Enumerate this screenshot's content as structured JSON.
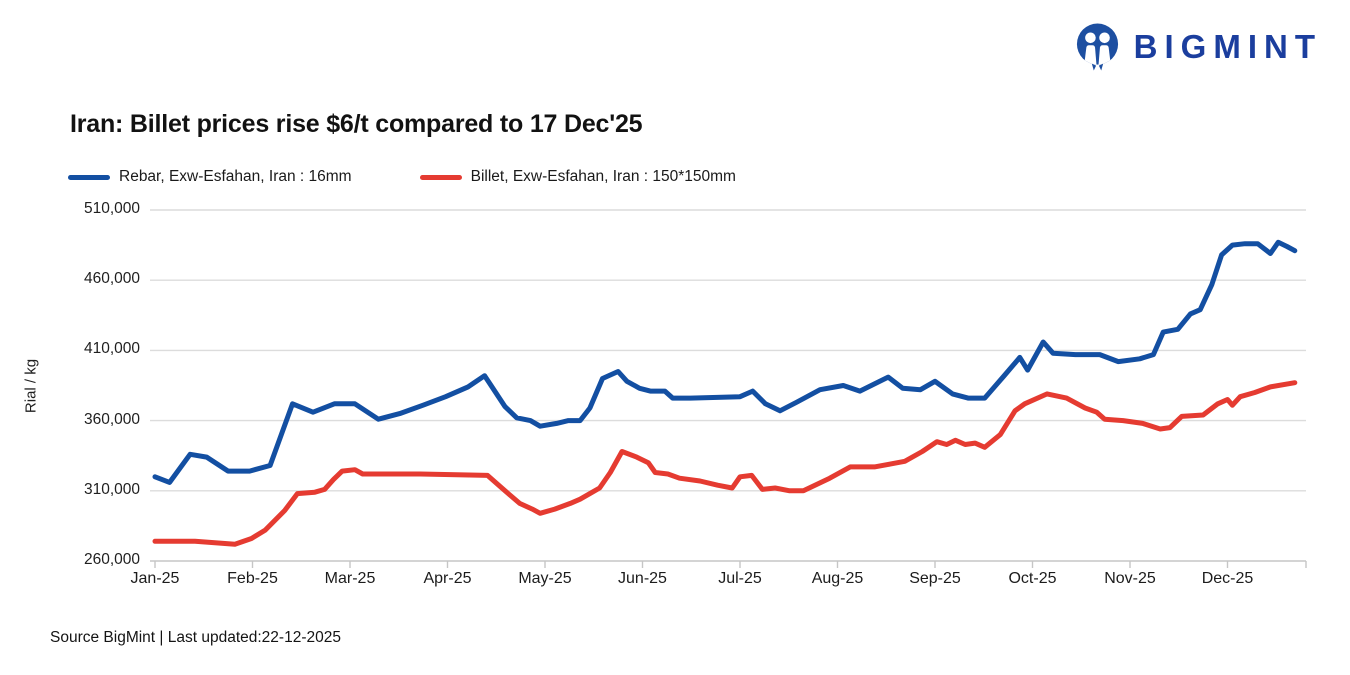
{
  "brand": {
    "name": "BIGMINT",
    "logo_icon": "bigmint-two-people-circle",
    "icon_color": "#1d4fa1",
    "text_color": "#1b3e9e"
  },
  "header": {
    "title": "Iran: Billet prices rise $6/t compared to 17 Dec'25"
  },
  "footer": {
    "text": "Source BigMint | Last updated:22-12-2025"
  },
  "chart_data": {
    "type": "line",
    "title": "Iran: Billet prices rise $6/t compared to 17 Dec'25",
    "ylabel": "Rial / kg",
    "ylim": [
      260000,
      510000
    ],
    "grid": "horizontal",
    "legend_position": "top-left",
    "line_width": 5,
    "x_unit": "months since Jan-2025 (0 = early Jan-25, fractional months)",
    "yticks": [
      {
        "value": 510000,
        "label": "510,000"
      },
      {
        "value": 460000,
        "label": "460,000"
      },
      {
        "value": 410000,
        "label": "410,000"
      },
      {
        "value": 360000,
        "label": "360,000"
      },
      {
        "value": 310000,
        "label": "310,000"
      },
      {
        "value": 260000,
        "label": "260,000"
      }
    ],
    "x_tick_labels": [
      "Jan-25",
      "Feb-25",
      "Mar-25",
      "Apr-25",
      "May-25",
      "Jun-25",
      "Jul-25",
      "Aug-25",
      "Sep-25",
      "Oct-25",
      "Nov-25",
      "Dec-25"
    ],
    "series": [
      {
        "name": "Rebar, Exw-Esfahan, Iran : 16mm",
        "color": "#134fa2",
        "points": [
          [
            0,
            320000
          ],
          [
            0.15,
            316000
          ],
          [
            0.36,
            336000
          ],
          [
            0.53,
            334000
          ],
          [
            0.75,
            324000
          ],
          [
            0.97,
            324000
          ],
          [
            1.18,
            328000
          ],
          [
            1.41,
            372000
          ],
          [
            1.62,
            366000
          ],
          [
            1.84,
            372000
          ],
          [
            2.05,
            372000
          ],
          [
            2.29,
            361000
          ],
          [
            2.51,
            365000
          ],
          [
            2.75,
            371000
          ],
          [
            2.98,
            377000
          ],
          [
            3.21,
            384000
          ],
          [
            3.38,
            392000
          ],
          [
            3.59,
            370000
          ],
          [
            3.71,
            362000
          ],
          [
            3.85,
            360000
          ],
          [
            3.95,
            356000
          ],
          [
            4.12,
            358000
          ],
          [
            4.24,
            360000
          ],
          [
            4.36,
            360000
          ],
          [
            4.46,
            369000
          ],
          [
            4.59,
            390000
          ],
          [
            4.75,
            395000
          ],
          [
            4.84,
            388000
          ],
          [
            4.97,
            383000
          ],
          [
            5.08,
            381000
          ],
          [
            5.23,
            381000
          ],
          [
            5.31,
            376000
          ],
          [
            5.49,
            376000
          ],
          [
            6,
            377000
          ],
          [
            6.13,
            381000
          ],
          [
            6.26,
            372000
          ],
          [
            6.41,
            367000
          ],
          [
            6.58,
            373000
          ],
          [
            6.82,
            382000
          ],
          [
            7.06,
            385000
          ],
          [
            7.23,
            381000
          ],
          [
            7.52,
            391000
          ],
          [
            7.67,
            383000
          ],
          [
            7.85,
            382000
          ],
          [
            8,
            388000
          ],
          [
            8.18,
            379000
          ],
          [
            8.34,
            376000
          ],
          [
            8.51,
            376000
          ],
          [
            8.71,
            392000
          ],
          [
            8.87,
            405000
          ],
          [
            8.95,
            396000
          ],
          [
            9.11,
            416000
          ],
          [
            9.21,
            408000
          ],
          [
            9.44,
            407000
          ],
          [
            9.69,
            407000
          ],
          [
            9.88,
            402000
          ],
          [
            10.1,
            404000
          ],
          [
            10.24,
            407000
          ],
          [
            10.34,
            423000
          ],
          [
            10.49,
            425000
          ],
          [
            10.62,
            436000
          ],
          [
            10.72,
            439000
          ],
          [
            10.84,
            457000
          ],
          [
            10.94,
            478000
          ],
          [
            11.05,
            485000
          ],
          [
            11.18,
            486000
          ],
          [
            11.31,
            486000
          ],
          [
            11.44,
            479000
          ],
          [
            11.52,
            487000
          ],
          [
            11.61,
            484000
          ],
          [
            11.69,
            481000
          ]
        ]
      },
      {
        "name": "Billet, Exw-Esfahan, Iran : 150*150mm",
        "color": "#e53b31",
        "points": [
          [
            0,
            274000
          ],
          [
            0.41,
            274000
          ],
          [
            0.82,
            272000
          ],
          [
            0.99,
            276000
          ],
          [
            1.13,
            282000
          ],
          [
            1.33,
            296000
          ],
          [
            1.46,
            308000
          ],
          [
            1.64,
            309000
          ],
          [
            1.74,
            311000
          ],
          [
            1.83,
            318000
          ],
          [
            1.92,
            324000
          ],
          [
            2.05,
            325000
          ],
          [
            2.13,
            322000
          ],
          [
            2.72,
            322000
          ],
          [
            3.41,
            321000
          ],
          [
            3.59,
            310000
          ],
          [
            3.74,
            301000
          ],
          [
            3.87,
            297000
          ],
          [
            3.95,
            294000
          ],
          [
            4.1,
            297000
          ],
          [
            4.26,
            301000
          ],
          [
            4.36,
            304000
          ],
          [
            4.46,
            308000
          ],
          [
            4.56,
            312000
          ],
          [
            4.67,
            323000
          ],
          [
            4.79,
            338000
          ],
          [
            4.94,
            334000
          ],
          [
            5.06,
            330000
          ],
          [
            5.13,
            323000
          ],
          [
            5.26,
            322000
          ],
          [
            5.38,
            319000
          ],
          [
            5.59,
            317000
          ],
          [
            5.77,
            314000
          ],
          [
            5.92,
            312000
          ],
          [
            6,
            320000
          ],
          [
            6.12,
            321000
          ],
          [
            6.23,
            311000
          ],
          [
            6.36,
            312000
          ],
          [
            6.51,
            310000
          ],
          [
            6.65,
            310000
          ],
          [
            6.92,
            319000
          ],
          [
            7.13,
            327000
          ],
          [
            7.38,
            327000
          ],
          [
            7.54,
            329000
          ],
          [
            7.69,
            331000
          ],
          [
            7.87,
            338000
          ],
          [
            8.02,
            345000
          ],
          [
            8.12,
            343000
          ],
          [
            8.21,
            346000
          ],
          [
            8.31,
            343000
          ],
          [
            8.41,
            344000
          ],
          [
            8.51,
            341000
          ],
          [
            8.67,
            350000
          ],
          [
            8.82,
            367000
          ],
          [
            8.92,
            372000
          ],
          [
            9.15,
            379000
          ],
          [
            9.35,
            376000
          ],
          [
            9.54,
            369000
          ],
          [
            9.66,
            366000
          ],
          [
            9.74,
            361000
          ],
          [
            9.93,
            360000
          ],
          [
            10.13,
            358000
          ],
          [
            10.31,
            354000
          ],
          [
            10.41,
            355000
          ],
          [
            10.53,
            363000
          ],
          [
            10.75,
            364000
          ],
          [
            10.9,
            372000
          ],
          [
            11,
            375000
          ],
          [
            11.05,
            371000
          ],
          [
            11.13,
            377000
          ],
          [
            11.28,
            380000
          ],
          [
            11.44,
            384000
          ],
          [
            11.69,
            387000
          ]
        ]
      }
    ]
  }
}
